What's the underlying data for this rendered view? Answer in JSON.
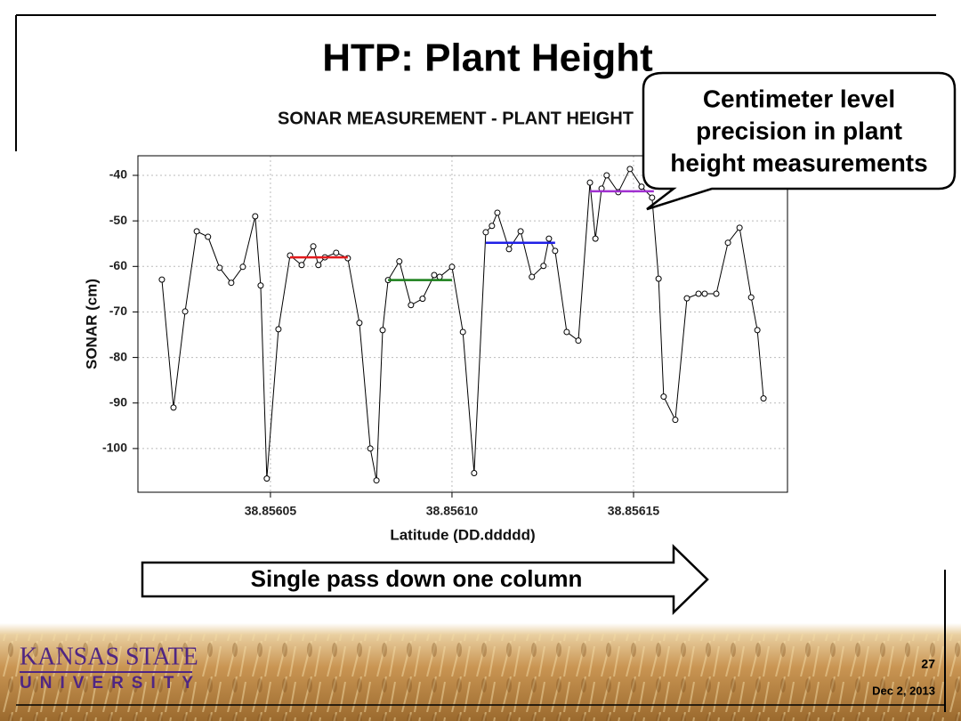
{
  "slide": {
    "title": "HTP: Plant Height"
  },
  "chart_data": {
    "type": "line",
    "title": "SONAR MEASUREMENT - PLANT HEIGHT",
    "x_label": "Latitude (DD.ddddd)",
    "y_label": "SONAR (cm)",
    "xlim": [
      38.8560135,
      38.8561924
    ],
    "ylim": [
      -109.6,
      -35.7
    ],
    "xticks": [
      38.85605,
      {
        "value": 38.8561,
        "label": "38.85610"
      },
      38.85615
    ],
    "yticks": [
      -40,
      -50,
      -60,
      -70,
      -80,
      -90,
      -100
    ],
    "grid": true,
    "series": [
      {
        "color": "#000000",
        "marker": "circle",
        "x": [
          38.8560201,
          38.8560233,
          38.8560265,
          38.8560297,
          38.8560328,
          38.856036,
          38.8560392,
          38.8560424,
          38.8560458,
          38.8560473,
          38.856049,
          38.8560522,
          38.8560554,
          38.8560586,
          38.8560618,
          38.8560632,
          38.856065,
          38.8560681,
          38.8560713,
          38.8560745,
          38.8560775,
          38.8560792,
          38.8560809,
          38.8560824,
          38.8560855,
          38.8560887,
          38.8560919,
          38.8560951,
          38.8560966,
          38.8561,
          38.856103,
          38.8561061,
          38.8561093,
          38.856111,
          38.8561125,
          38.8561157,
          38.8561189,
          38.856122,
          38.8561252,
          38.8561267,
          38.8561284,
          38.8561316,
          38.8561348,
          38.856138,
          38.8561395,
          38.8561412,
          38.8561426,
          38.8561458,
          38.856149,
          38.8561522,
          38.8561551,
          38.8561569,
          38.8561583,
          38.8561615,
          38.8561647,
          38.8561679,
          38.8561696,
          38.8561728,
          38.856176,
          38.8561792,
          38.8561824,
          38.8561841,
          38.8561858
        ],
        "values": [
          -62.9,
          -91.0,
          -69.9,
          -52.3,
          -53.5,
          -60.3,
          -63.6,
          -60.1,
          -49.0,
          -64.2,
          -106.6,
          -73.8,
          -57.6,
          -59.7,
          -55.6,
          -59.7,
          -58.0,
          -57.0,
          -58.2,
          -72.4,
          -100.0,
          -107.0,
          -74.0,
          -63.0,
          -58.9,
          -68.5,
          -67.1,
          -61.9,
          -62.3,
          -60.1,
          -74.4,
          -105.4,
          -52.5,
          -51.1,
          -48.2,
          -56.2,
          -52.3,
          -62.3,
          -59.9,
          -53.9,
          -56.6,
          -74.4,
          -76.3,
          -41.6,
          -53.9,
          -42.9,
          -40.0,
          -43.7,
          -38.6,
          -42.5,
          -44.9,
          -62.7,
          -88.6,
          -93.7,
          -67.0,
          -66.0,
          -66.0,
          -66.0,
          -54.8,
          -51.5,
          -66.8,
          -74.0,
          -89.0
        ]
      },
      {
        "color": "#e31a1c",
        "x": [
          38.8560554,
          38.8560713
        ],
        "values": [
          -58.0,
          -58.0
        ]
      },
      {
        "color": "#1a7f1a",
        "x": [
          38.8560824,
          38.8561
        ],
        "values": [
          -63.0,
          -63.0
        ]
      },
      {
        "color": "#1f1fe6",
        "x": [
          38.8561093,
          38.8561284
        ],
        "values": [
          -54.8,
          -54.8
        ]
      },
      {
        "color": "#a030d0",
        "x": [
          38.856138,
          38.8561556
        ],
        "values": [
          -43.5,
          -43.5
        ]
      }
    ]
  },
  "callout": {
    "lines": [
      "Centimeter level",
      "precision in plant",
      "height measurements"
    ]
  },
  "arrow_label": "Single pass down one column",
  "footer": {
    "logo_top": "KANSAS STATE",
    "logo_bottom": "UNIVERSITY",
    "page_number": "27",
    "date": "Dec 2, 2013"
  }
}
